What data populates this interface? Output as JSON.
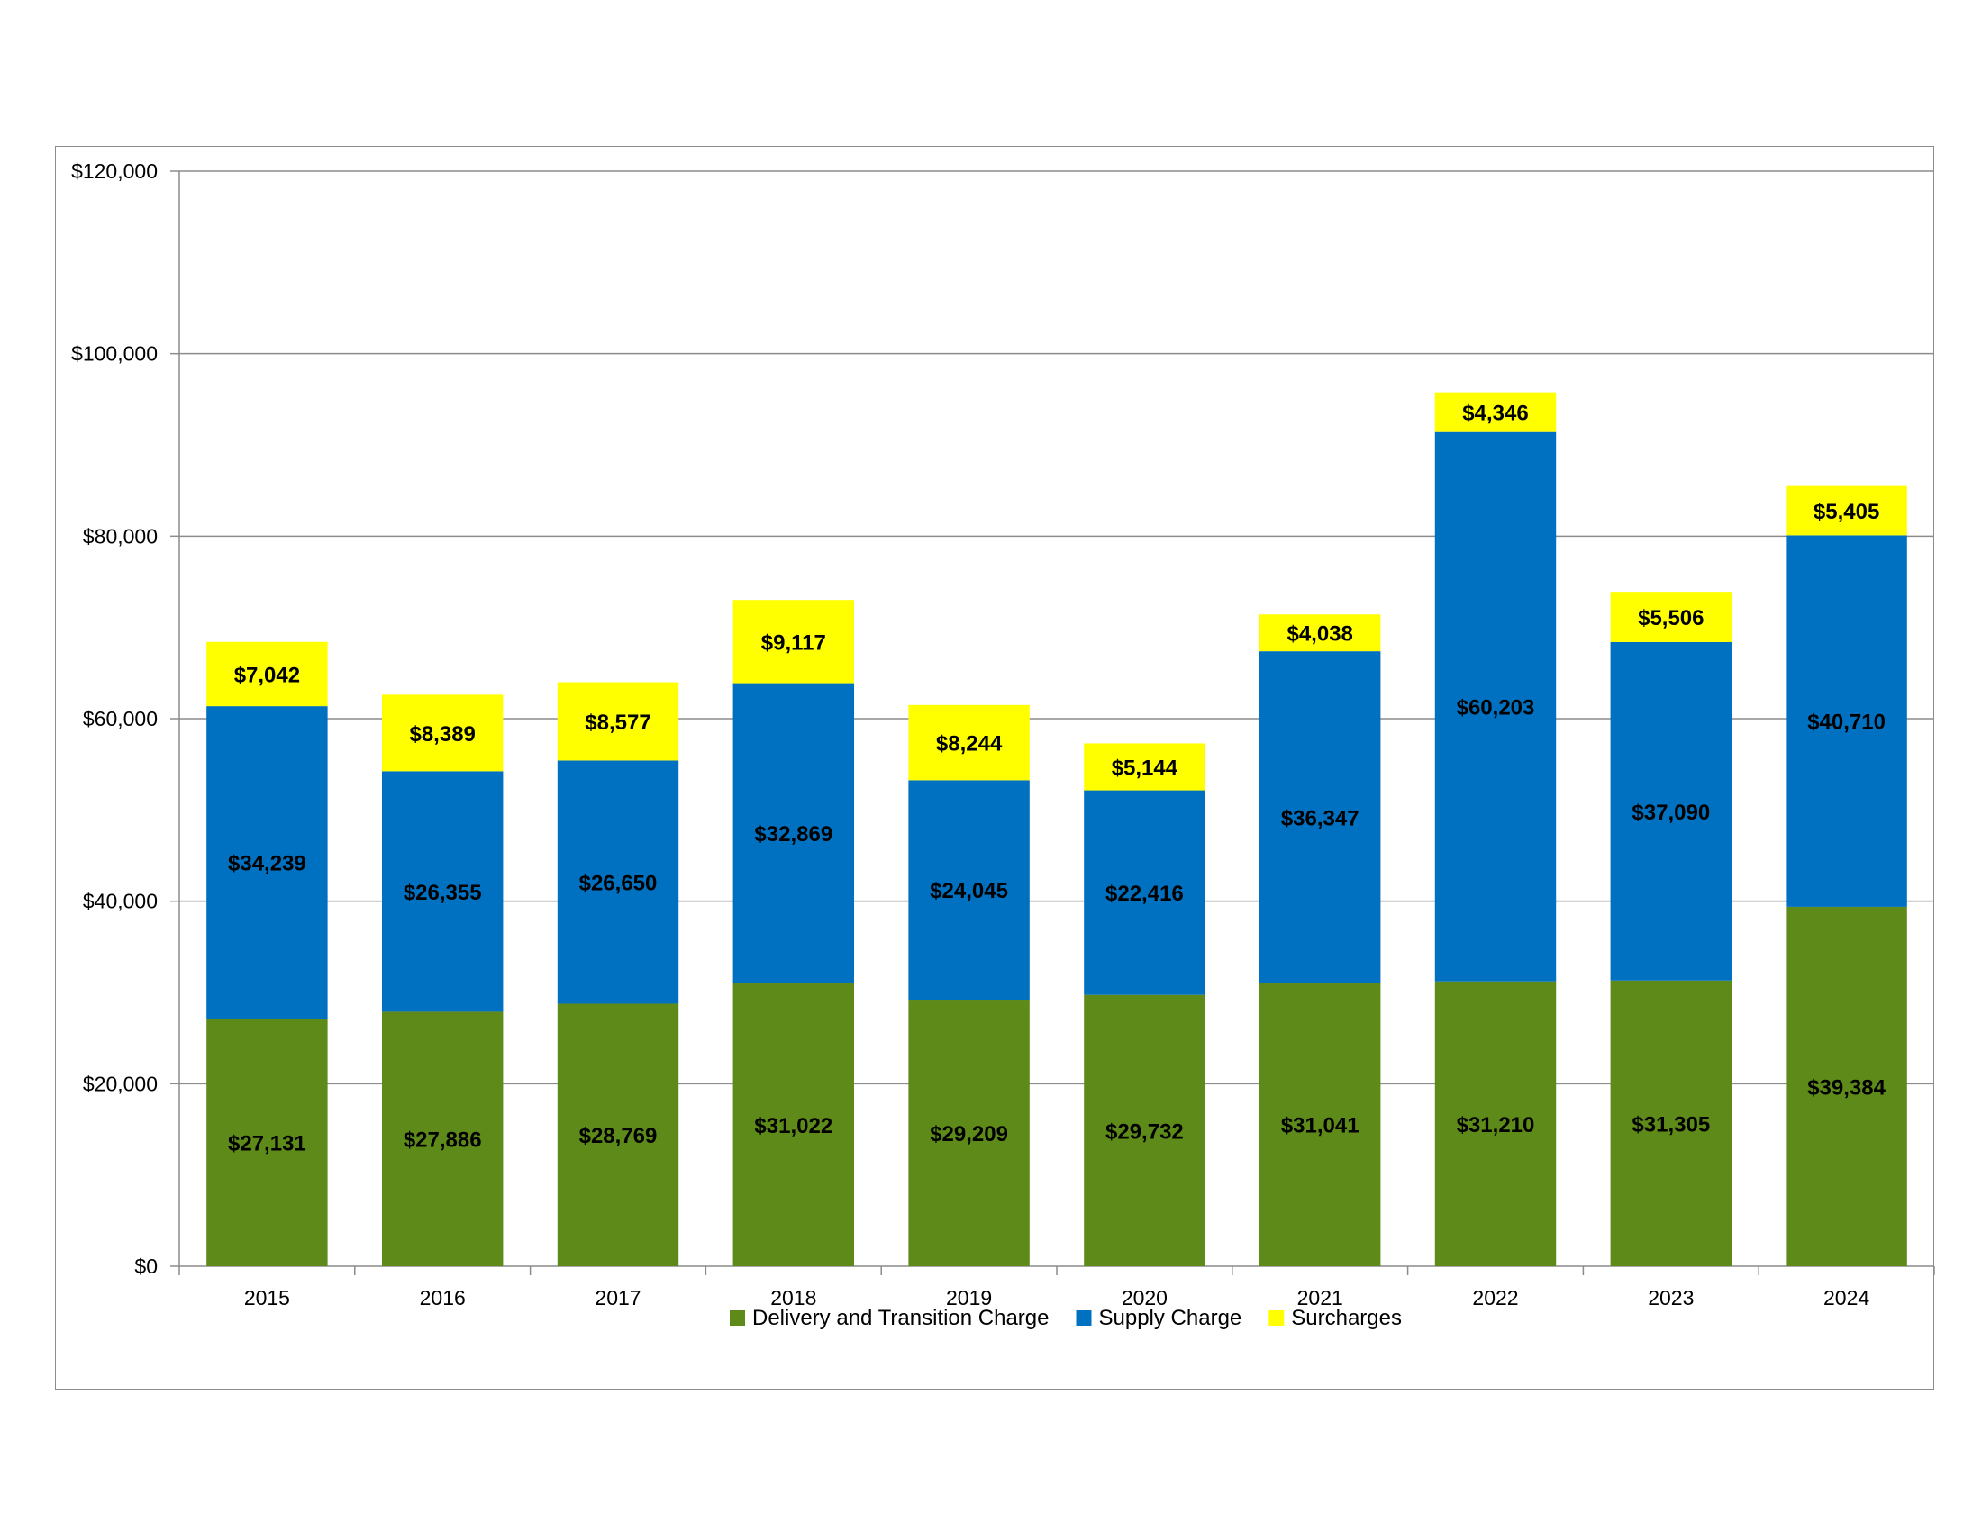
{
  "chart_data": {
    "type": "bar",
    "stacked": true,
    "title": "",
    "xlabel": "",
    "ylabel": "",
    "ylim": [
      0,
      120000
    ],
    "y_ticks": [
      0,
      20000,
      40000,
      60000,
      80000,
      100000,
      120000
    ],
    "y_tick_labels": [
      "$0",
      "$20,000",
      "$40,000",
      "$60,000",
      "$80,000",
      "$100,000",
      "$120,000"
    ],
    "grid": true,
    "legend_position": "bottom",
    "categories": [
      "2015",
      "2016",
      "2017",
      "2018",
      "2019",
      "2020",
      "2021",
      "2022",
      "2023",
      "2024"
    ],
    "series": [
      {
        "name": "Delivery and Transition Charge",
        "color": "#5e8a1a",
        "values": [
          27131,
          27886,
          28769,
          31022,
          29209,
          29732,
          31041,
          31210,
          31305,
          39384
        ],
        "labels": [
          "$27,131",
          "$27,886",
          "$28,769",
          "$31,022",
          "$29,209",
          "$29,732",
          "$31,041",
          "$31,210",
          "$31,305",
          "$39,384"
        ]
      },
      {
        "name": "Supply Charge",
        "color": "#0070c0",
        "values": [
          34239,
          26355,
          26650,
          32869,
          24045,
          22416,
          36347,
          60203,
          37090,
          40710
        ],
        "labels": [
          "$34,239",
          "$26,355",
          "$26,650",
          "$32,869",
          "$24,045",
          "$22,416",
          "$36,347",
          "$60,203",
          "$37,090",
          "$40,710"
        ]
      },
      {
        "name": "Surcharges",
        "color": "#ffff00",
        "values": [
          7042,
          8389,
          8577,
          9117,
          8244,
          5144,
          4038,
          4346,
          5506,
          5405
        ],
        "labels": [
          "$7,042",
          "$8,389",
          "$8,577",
          "$9,117",
          "$8,244",
          "$5,144",
          "$4,038",
          "$4,346",
          "$5,506",
          "$5,405"
        ]
      }
    ]
  }
}
